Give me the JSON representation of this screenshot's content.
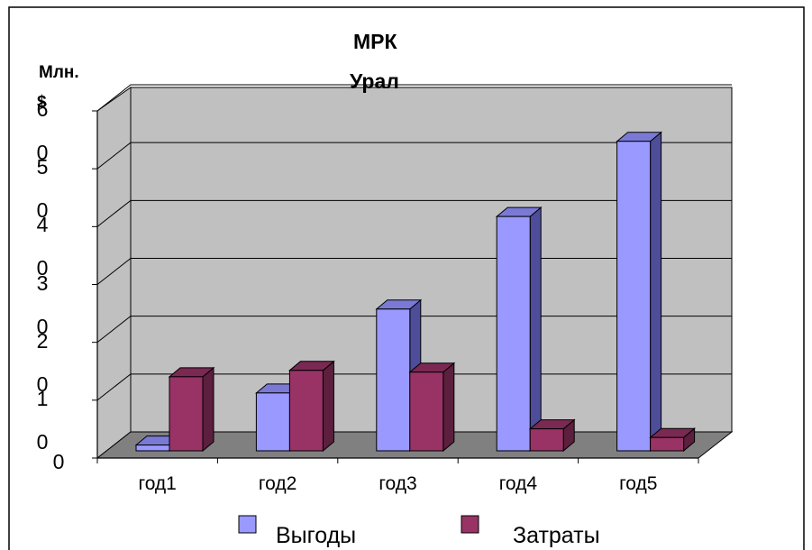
{
  "chart_data": {
    "type": "bar",
    "title": "МРК Урал",
    "title_lines": [
      "МРК",
      "Урал"
    ],
    "ylabel": "Млн. $",
    "ylabel_lines": [
      "Млн.",
      "$"
    ],
    "ylim": [
      0,
      60
    ],
    "yticks": [
      {
        "value": 0,
        "lines": [
          "0"
        ]
      },
      {
        "value": 10,
        "lines": [
          "1",
          "0"
        ]
      },
      {
        "value": 20,
        "lines": [
          "2",
          "0"
        ]
      },
      {
        "value": 30,
        "lines": [
          "3",
          "0"
        ]
      },
      {
        "value": 40,
        "lines": [
          "4",
          "0"
        ]
      },
      {
        "value": 50,
        "lines": [
          "5",
          "0"
        ]
      },
      {
        "value": 60,
        "lines": [
          "6",
          "0"
        ]
      }
    ],
    "categories": [
      "год1",
      "год2",
      "год3",
      "год4",
      "год5"
    ],
    "series": [
      {
        "name": "Выгоды",
        "values": [
          1,
          10,
          24.5,
          40.5,
          53.5
        ],
        "color": "#9999ff",
        "side_color": "#4d4d99",
        "top_color": "#7a7ad6"
      },
      {
        "name": "Затраты",
        "values": [
          12.8,
          13.9,
          13.6,
          3.8,
          2.3
        ],
        "color": "#993366",
        "side_color": "#5c1f3d",
        "top_color": "#7a2952"
      }
    ],
    "grid": true,
    "legend_position": "bottom"
  }
}
